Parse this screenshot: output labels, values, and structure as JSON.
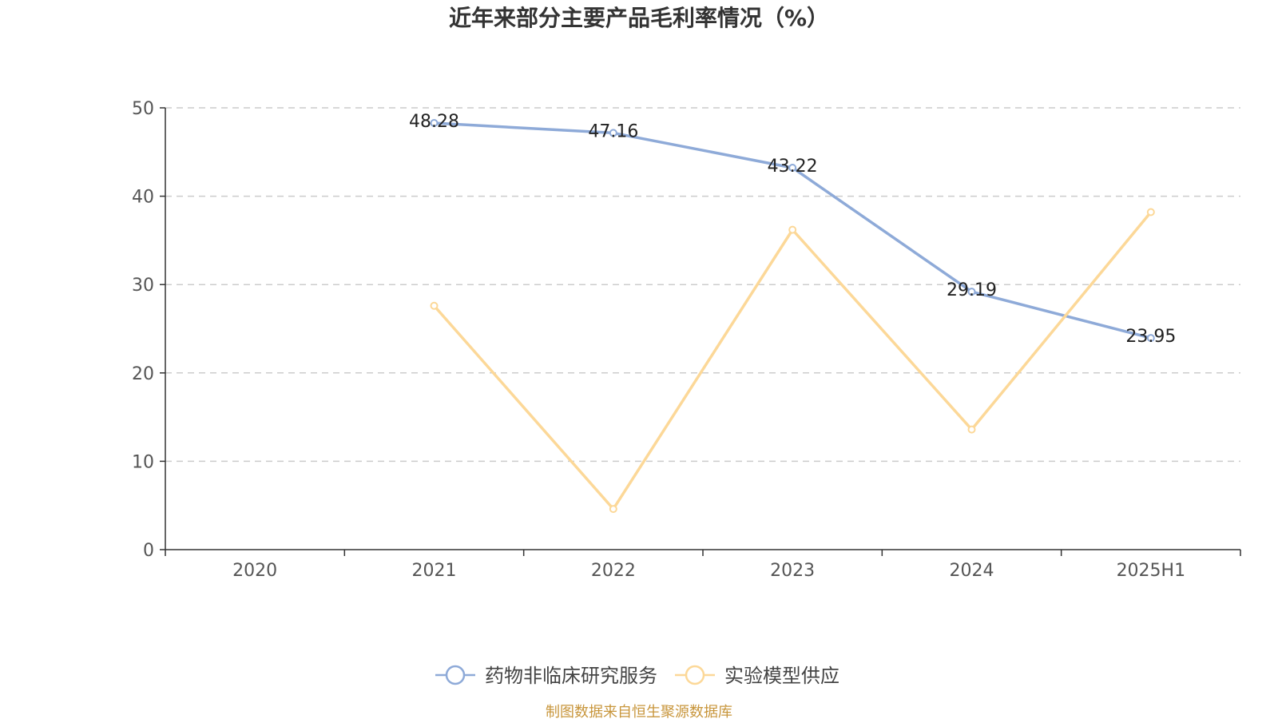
{
  "chart_data": {
    "type": "line",
    "title": "近年来部分主要产品毛利率情况（%）",
    "categories": [
      "2020",
      "2021",
      "2022",
      "2023",
      "2024",
      "2025H1"
    ],
    "ylim": [
      0,
      50
    ],
    "yticks": [
      0,
      10,
      20,
      30,
      40,
      50
    ],
    "grid": true,
    "legend_position": "bottom",
    "series": [
      {
        "name": "药物非临床研究服务",
        "color": "#8eaad8",
        "values": [
          null,
          48.28,
          47.16,
          43.22,
          29.19,
          23.95
        ],
        "labels": [
          "",
          "48.28",
          "47.16",
          "43.22",
          "29.19",
          "23.95"
        ]
      },
      {
        "name": "实验模型供应",
        "color": "#fcd898",
        "values": [
          null,
          27.6,
          4.6,
          36.2,
          13.6,
          38.2
        ],
        "labels": [
          "",
          "",
          "",
          "",
          "",
          ""
        ]
      }
    ]
  },
  "source": "制图数据来自恒生聚源数据库"
}
